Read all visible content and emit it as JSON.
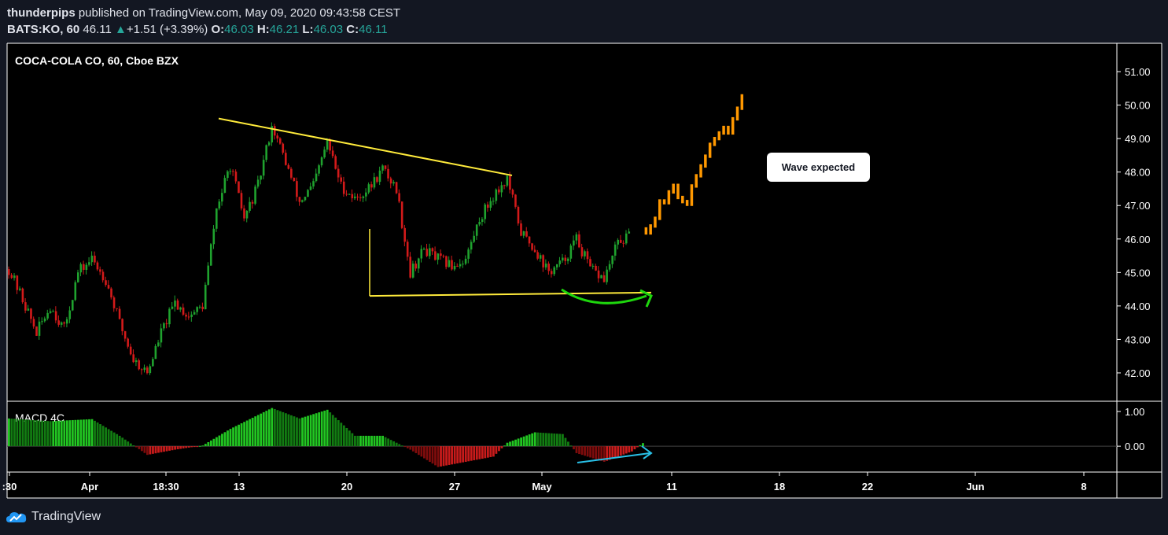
{
  "header": {
    "author": "thunderpips",
    "published_text": " published on TradingView.com, May 09, 2020 09:43:58 CEST",
    "symbol": "BATS:KO, 60",
    "last": "46.11",
    "up_arrow": "▲",
    "change": "+1.51 (+3.39%)",
    "o_label": "O:",
    "o": "46.03",
    "h_label": "H:",
    "h": "46.21",
    "l_label": "L:",
    "l": "46.03",
    "c_label": "C:",
    "c": "46.11"
  },
  "footer": {
    "brand": "TradingView"
  },
  "colors": {
    "bull": "#1fa22e",
    "bear": "#d31a1a",
    "forecast": "#ff9800",
    "trendline": "#ffeb3b",
    "arc": "#1ed60d",
    "divergence": "#29c1e8"
  },
  "chart_data": {
    "type": "candlestick",
    "title": "COCA-COLA CO, 60, Cboe BZX",
    "price_axis": {
      "ticks": [
        42,
        43,
        44,
        45,
        46,
        47,
        48,
        49,
        50,
        51
      ],
      "tick_labels": [
        "42.00",
        "43.00",
        "44.00",
        "45.00",
        "46.00",
        "47.00",
        "48.00",
        "49.00",
        "50.00",
        "51.00"
      ],
      "ylim": [
        41.2,
        51.8
      ]
    },
    "time_axis": {
      "labels": [
        ":30",
        "Apr",
        "18:30",
        "13",
        "20",
        "27",
        "May",
        "11",
        "18",
        "22",
        "Jun",
        "8"
      ]
    },
    "price_path": [
      [
        0,
        45.1
      ],
      [
        1,
        44.2
      ],
      [
        2,
        43.2
      ],
      [
        3,
        44.0
      ],
      [
        4,
        43.3
      ],
      [
        5,
        45.0
      ],
      [
        6,
        45.4
      ],
      [
        7,
        44.8
      ],
      [
        8,
        43.5
      ],
      [
        9,
        42.4
      ],
      [
        10,
        42.0
      ],
      [
        11,
        43.2
      ],
      [
        12,
        44.1
      ],
      [
        13,
        43.7
      ],
      [
        14,
        44.0
      ],
      [
        15,
        46.9
      ],
      [
        16,
        48.2
      ],
      [
        17,
        46.6
      ],
      [
        18,
        47.6
      ],
      [
        19,
        49.4
      ],
      [
        20,
        48.3
      ],
      [
        21,
        47.1
      ],
      [
        22,
        47.6
      ],
      [
        23,
        48.9
      ],
      [
        24,
        47.6
      ],
      [
        25,
        47.2
      ],
      [
        26,
        47.5
      ],
      [
        27,
        48.1
      ],
      [
        28,
        47.5
      ],
      [
        29,
        45.0
      ],
      [
        30,
        45.7
      ],
      [
        31,
        45.4
      ],
      [
        32,
        45.2
      ],
      [
        33,
        45.4
      ],
      [
        34,
        46.6
      ],
      [
        35,
        47.3
      ],
      [
        36,
        47.8
      ],
      [
        37,
        46.2
      ],
      [
        38,
        45.7
      ],
      [
        39,
        45.0
      ],
      [
        40,
        45.3
      ],
      [
        41,
        46.0
      ],
      [
        42,
        45.1
      ],
      [
        43,
        44.8
      ],
      [
        44,
        45.9
      ],
      [
        45,
        46.1
      ]
    ],
    "forecast_path": [
      [
        46,
        46.3
      ],
      [
        47,
        47.0
      ],
      [
        48,
        47.5
      ],
      [
        49,
        47.1
      ],
      [
        50,
        48.3
      ],
      [
        51,
        49.0
      ],
      [
        52,
        49.3
      ],
      [
        53,
        50.4
      ]
    ],
    "annotations": [
      {
        "type": "trendline",
        "from": [
          "Apr 11",
          49.6
        ],
        "to": [
          "Apr 30",
          47.9
        ]
      },
      {
        "type": "trendline",
        "from": [
          "Apr 21",
          44.3
        ],
        "to": [
          "May 8",
          44.4
        ]
      },
      {
        "type": "arrow-arc",
        "near": "May 4 - May 8",
        "price": 44.4
      },
      {
        "type": "callout",
        "text": "Wave expected"
      }
    ],
    "macd": {
      "name": "MACD 4C",
      "ticks": [
        0,
        1
      ],
      "tick_labels": [
        "0.00",
        "1.00"
      ],
      "ylim": [
        -0.7,
        1.25
      ],
      "path": [
        [
          0,
          0.8
        ],
        [
          3,
          0.72
        ],
        [
          6,
          0.78
        ],
        [
          8,
          0.3
        ],
        [
          10,
          -0.25
        ],
        [
          12,
          -0.1
        ],
        [
          14,
          0.02
        ],
        [
          16,
          0.5
        ],
        [
          19,
          1.1
        ],
        [
          21,
          0.8
        ],
        [
          23,
          1.05
        ],
        [
          25,
          0.3
        ],
        [
          27,
          0.3
        ],
        [
          29,
          -0.1
        ],
        [
          31,
          -0.6
        ],
        [
          33,
          -0.45
        ],
        [
          35,
          -0.3
        ],
        [
          36,
          0.1
        ],
        [
          38,
          0.4
        ],
        [
          40,
          0.35
        ],
        [
          41,
          -0.2
        ],
        [
          43,
          -0.45
        ],
        [
          45,
          -0.15
        ],
        [
          46,
          0.15
        ]
      ]
    }
  }
}
